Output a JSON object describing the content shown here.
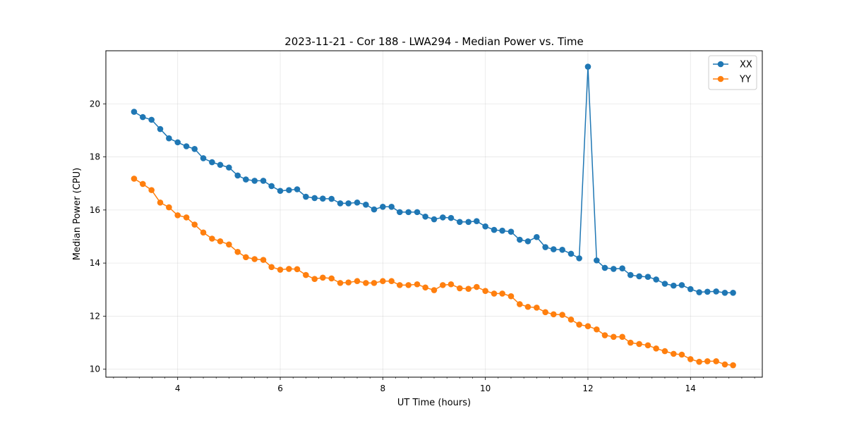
{
  "chart_data": {
    "type": "line",
    "title": "2023-11-21 - Cor 188 - LWA294 - Median Power vs. Time",
    "xlabel": "UT Time (hours)",
    "ylabel": "Median Power (CPU)",
    "xlim": [
      2.6,
      15.4
    ],
    "ylim": [
      9.7,
      22.0
    ],
    "xticks": [
      4,
      6,
      8,
      10,
      12,
      14
    ],
    "xtick_labels": [
      "4",
      "6",
      "8",
      "10",
      "12",
      "14"
    ],
    "yticks": [
      10,
      12,
      14,
      16,
      18,
      20
    ],
    "ytick_labels": [
      "10",
      "12",
      "14",
      "16",
      "18",
      "20"
    ],
    "grid": true,
    "legend_position": "top-right",
    "x": [
      3.15,
      3.32,
      3.49,
      3.66,
      3.83,
      4.0,
      4.17,
      4.33,
      4.5,
      4.67,
      4.83,
      5.0,
      5.17,
      5.33,
      5.5,
      5.67,
      5.83,
      6.0,
      6.17,
      6.33,
      6.5,
      6.67,
      6.83,
      7.0,
      7.17,
      7.33,
      7.5,
      7.67,
      7.83,
      8.0,
      8.17,
      8.33,
      8.5,
      8.67,
      8.83,
      9.0,
      9.17,
      9.33,
      9.5,
      9.67,
      9.83,
      10.0,
      10.17,
      10.33,
      10.5,
      10.67,
      10.83,
      11.0,
      11.17,
      11.33,
      11.5,
      11.67,
      11.83,
      12.0,
      12.17,
      12.33,
      12.5,
      12.67,
      12.83,
      13.0,
      13.17,
      13.33,
      13.5,
      13.67,
      13.83,
      14.0,
      14.17,
      14.33,
      14.5,
      14.67,
      14.83
    ],
    "series": [
      {
        "name": "XX",
        "color": "#1f77b4",
        "values": [
          19.7,
          19.5,
          19.4,
          19.05,
          18.7,
          18.55,
          18.4,
          18.3,
          17.95,
          17.8,
          17.7,
          17.6,
          17.3,
          17.15,
          17.1,
          17.1,
          16.9,
          16.72,
          16.75,
          16.78,
          16.5,
          16.45,
          16.43,
          16.42,
          16.25,
          16.25,
          16.28,
          16.2,
          16.02,
          16.12,
          16.12,
          15.92,
          15.92,
          15.92,
          15.75,
          15.65,
          15.72,
          15.7,
          15.55,
          15.55,
          15.58,
          15.38,
          15.25,
          15.22,
          15.18,
          14.88,
          14.82,
          14.98,
          14.6,
          14.52,
          14.5,
          14.35,
          14.18,
          21.4,
          14.1,
          13.82,
          13.78,
          13.8,
          13.55,
          13.5,
          13.48,
          13.38,
          13.22,
          13.15,
          13.17,
          13.02,
          12.9,
          12.92,
          12.93,
          12.88,
          12.88
        ]
      },
      {
        "name": "YY",
        "color": "#ff7f0e",
        "values": [
          17.18,
          16.98,
          16.75,
          16.28,
          16.1,
          15.8,
          15.72,
          15.45,
          15.15,
          14.92,
          14.82,
          14.7,
          14.42,
          14.22,
          14.15,
          14.12,
          13.85,
          13.75,
          13.78,
          13.77,
          13.55,
          13.4,
          13.45,
          13.42,
          13.25,
          13.27,
          13.32,
          13.25,
          13.25,
          13.32,
          13.32,
          13.17,
          13.17,
          13.2,
          13.08,
          12.98,
          13.17,
          13.2,
          13.05,
          13.03,
          13.1,
          12.95,
          12.85,
          12.85,
          12.75,
          12.45,
          12.35,
          12.32,
          12.15,
          12.07,
          12.05,
          11.87,
          11.68,
          11.62,
          11.5,
          11.28,
          11.22,
          11.22,
          11.0,
          10.95,
          10.9,
          10.78,
          10.68,
          10.58,
          10.55,
          10.38,
          10.28,
          10.3,
          10.3,
          10.18,
          10.15
        ]
      }
    ]
  }
}
